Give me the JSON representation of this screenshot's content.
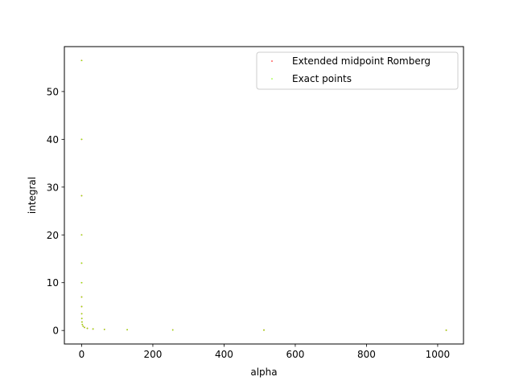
{
  "chart_data": {
    "type": "scatter",
    "title": "",
    "xlabel": "alpha",
    "ylabel": "integral",
    "xlim": [
      -48.5,
      1072.5
    ],
    "ylim": [
      -2.83,
      59.4
    ],
    "xticks": [
      0,
      200,
      400,
      600,
      800,
      1000
    ],
    "yticks": [
      0,
      10,
      20,
      30,
      40,
      50
    ],
    "grid": false,
    "legend_position": "top-right",
    "series": [
      {
        "name": "Extended midpoint Romberg",
        "color": "#ff0000",
        "points": [
          [
            0.001,
            56.5
          ],
          [
            0.002,
            40.0
          ],
          [
            0.004,
            28.2
          ],
          [
            0.008,
            20.0
          ],
          [
            0.016,
            14.1
          ],
          [
            0.031,
            10.0
          ],
          [
            0.063,
            7.0
          ],
          [
            0.125,
            5.0
          ],
          [
            0.25,
            3.5
          ],
          [
            0.5,
            2.5
          ],
          [
            1,
            1.77
          ],
          [
            2,
            1.25
          ],
          [
            4,
            0.89
          ],
          [
            8,
            0.63
          ],
          [
            16,
            0.44
          ],
          [
            32,
            0.31
          ],
          [
            64,
            0.22
          ],
          [
            128,
            0.16
          ],
          [
            256,
            0.11
          ],
          [
            512,
            0.08
          ],
          [
            1024,
            0.06
          ]
        ]
      },
      {
        "name": "Exact points",
        "color": "#7fff00",
        "points": [
          [
            0.001,
            56.5
          ],
          [
            0.002,
            40.0
          ],
          [
            0.004,
            28.2
          ],
          [
            0.008,
            20.0
          ],
          [
            0.016,
            14.1
          ],
          [
            0.031,
            10.0
          ],
          [
            0.063,
            7.0
          ],
          [
            0.125,
            5.0
          ],
          [
            0.25,
            3.5
          ],
          [
            0.5,
            2.5
          ],
          [
            1,
            1.77
          ],
          [
            2,
            1.25
          ],
          [
            4,
            0.89
          ],
          [
            8,
            0.63
          ],
          [
            16,
            0.44
          ],
          [
            32,
            0.31
          ],
          [
            64,
            0.22
          ],
          [
            128,
            0.16
          ],
          [
            256,
            0.11
          ],
          [
            512,
            0.08
          ],
          [
            1024,
            0.06
          ]
        ]
      }
    ]
  }
}
